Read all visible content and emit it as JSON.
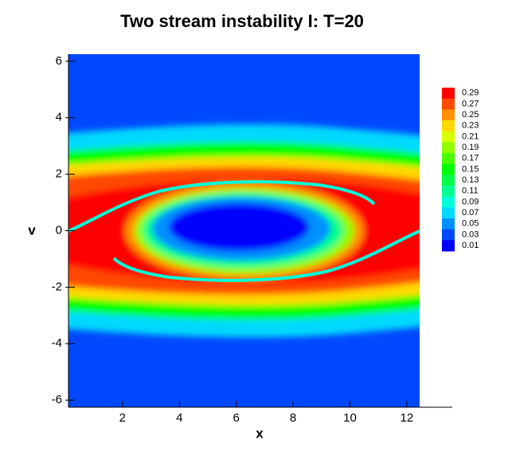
{
  "chart_data": {
    "type": "contour",
    "title": "Two stream instability I: T=20",
    "x_label": "x",
    "y_label": "v",
    "xlim": [
      0.1,
      13.6
    ],
    "ylim": [
      -6.25,
      6.25
    ],
    "xticks": [
      2,
      4,
      6,
      8,
      10,
      12
    ],
    "yticks": [
      6,
      4,
      2,
      0,
      -2,
      -4,
      -6
    ],
    "colorbar": {
      "levels": [
        0.29,
        0.27,
        0.25,
        0.23,
        0.21,
        0.19,
        0.17,
        0.15,
        0.13,
        0.11,
        0.09,
        0.07,
        0.05,
        0.03,
        0.01
      ],
      "colors": [
        "#ff0000",
        "#ff4800",
        "#ff9100",
        "#ffd900",
        "#d9ff00",
        "#90ff00",
        "#48ff00",
        "#00ff00",
        "#00ff48",
        "#00ff90",
        "#00ffd9",
        "#00d9ff",
        "#0090ff",
        "#0048ff",
        "#0000ff"
      ]
    }
  }
}
